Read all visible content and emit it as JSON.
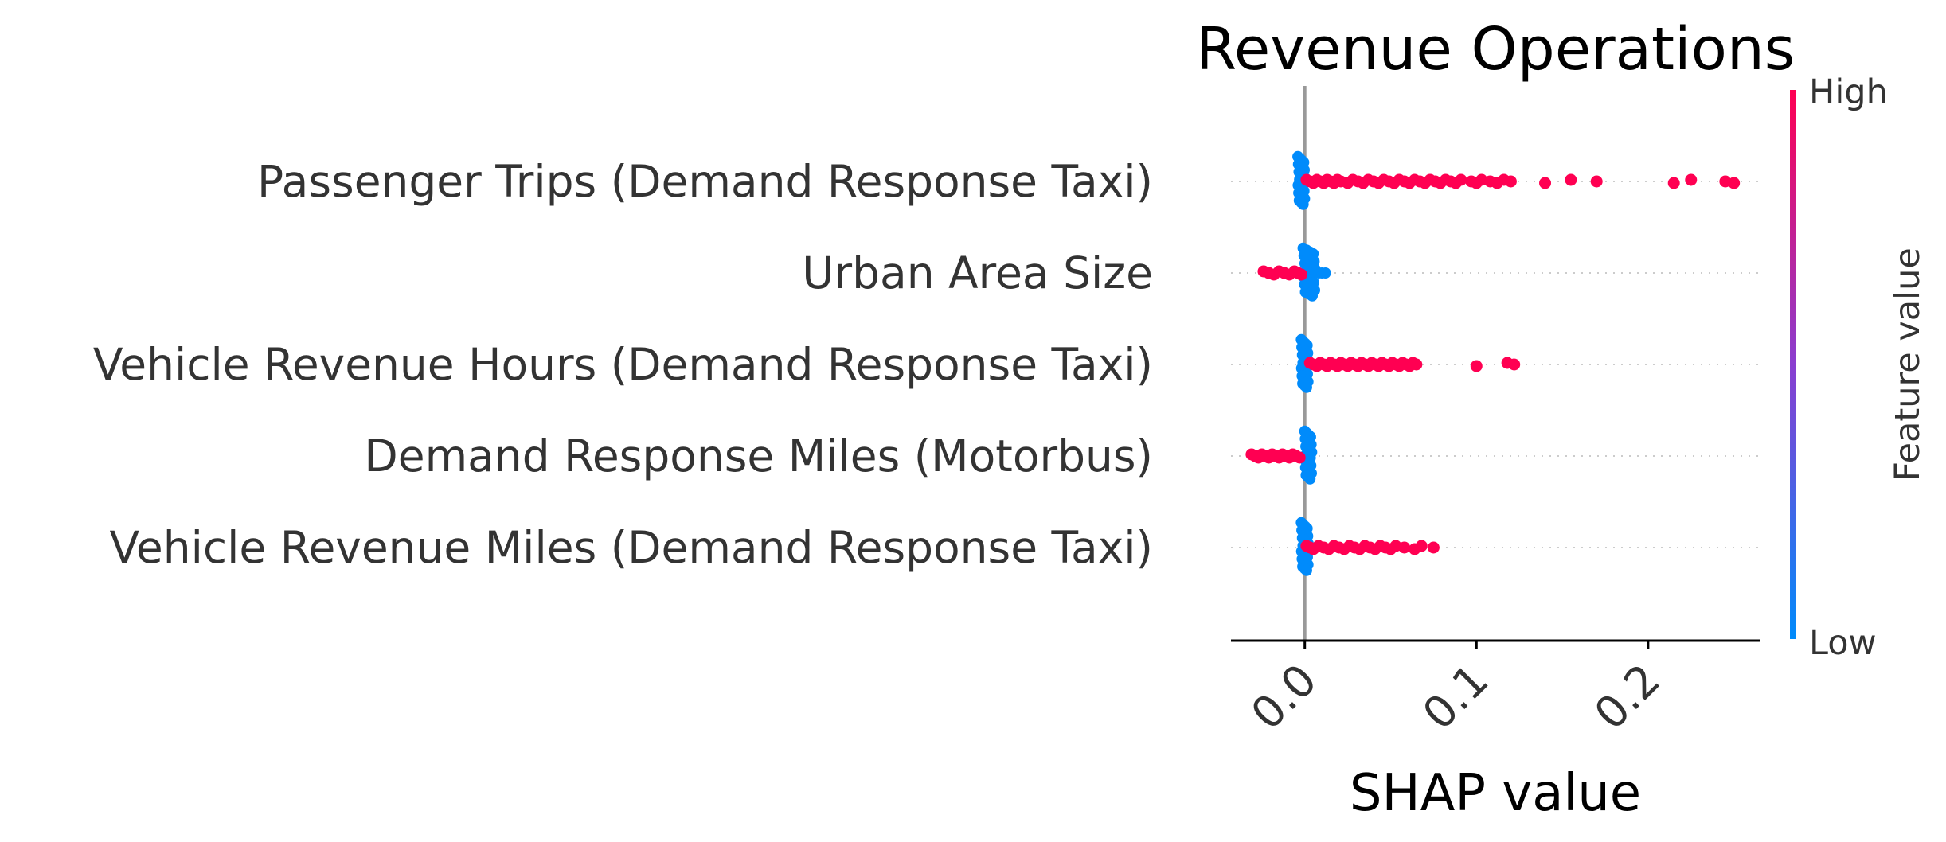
{
  "chart_data": {
    "type": "scatter",
    "subtype": "shap-beeswarm",
    "title": "Revenue Operations",
    "xlabel": "SHAP value",
    "xlim": [
      -0.043,
      0.265
    ],
    "xticks": [
      {
        "value": 0.0,
        "label": "0.0"
      },
      {
        "value": 0.1,
        "label": "0.1"
      },
      {
        "value": 0.2,
        "label": "0.2"
      }
    ],
    "colorbar": {
      "label": "Feature value",
      "high_label": "High",
      "low_label": "Low",
      "high_color": "#ff0052",
      "low_color": "#008bfb"
    },
    "features": [
      {
        "name": "Passenger Trips (Demand Response Taxi)",
        "low_cluster": [
          -0.004,
          0.0
        ],
        "high_points": [
          0.001,
          0.003,
          0.005,
          0.007,
          0.009,
          0.011,
          0.013,
          0.015,
          0.017,
          0.019,
          0.021,
          0.025,
          0.028,
          0.031,
          0.034,
          0.037,
          0.04,
          0.043,
          0.046,
          0.049,
          0.052,
          0.055,
          0.058,
          0.061,
          0.064,
          0.067,
          0.07,
          0.073,
          0.076,
          0.079,
          0.082,
          0.085,
          0.088,
          0.091,
          0.097,
          0.1,
          0.103,
          0.108,
          0.112,
          0.116,
          0.12,
          0.14,
          0.155,
          0.17,
          0.215,
          0.225,
          0.245,
          0.25
        ]
      },
      {
        "name": "Urban Area Size",
        "low_cluster": [
          -0.001,
          0.006
        ],
        "high_points": [
          -0.024,
          -0.021,
          -0.018,
          -0.015,
          -0.012,
          -0.009,
          -0.006,
          -0.004,
          -0.002
        ],
        "low_points": [
          0.008,
          0.01,
          0.012,
          -0.003
        ]
      },
      {
        "name": "Vehicle Revenue Hours (Demand Response Taxi)",
        "low_cluster": [
          -0.002,
          0.002
        ],
        "high_points": [
          0.003,
          0.005,
          0.007,
          0.009,
          0.011,
          0.013,
          0.015,
          0.017,
          0.019,
          0.021,
          0.023,
          0.025,
          0.027,
          0.029,
          0.031,
          0.033,
          0.035,
          0.037,
          0.039,
          0.041,
          0.043,
          0.045,
          0.047,
          0.049,
          0.051,
          0.053,
          0.055,
          0.057,
          0.059,
          0.061,
          0.063,
          0.065,
          0.1,
          0.118,
          0.122
        ]
      },
      {
        "name": "Demand Response Miles (Motorbus)",
        "low_cluster": [
          0.0,
          0.004
        ],
        "high_points": [
          -0.031,
          -0.029,
          -0.027,
          -0.025,
          -0.023,
          -0.021,
          -0.019,
          -0.017,
          -0.015,
          -0.013,
          -0.011,
          -0.009,
          -0.007,
          -0.005,
          -0.003
        ]
      },
      {
        "name": "Vehicle Revenue Miles (Demand Response Taxi)",
        "low_cluster": [
          -0.002,
          0.002
        ],
        "high_points": [
          0.001,
          0.003,
          0.005,
          0.008,
          0.011,
          0.014,
          0.017,
          0.02,
          0.023,
          0.026,
          0.029,
          0.032,
          0.035,
          0.038,
          0.041,
          0.044,
          0.047,
          0.05,
          0.053,
          0.058,
          0.064,
          0.068,
          0.075
        ]
      }
    ]
  }
}
